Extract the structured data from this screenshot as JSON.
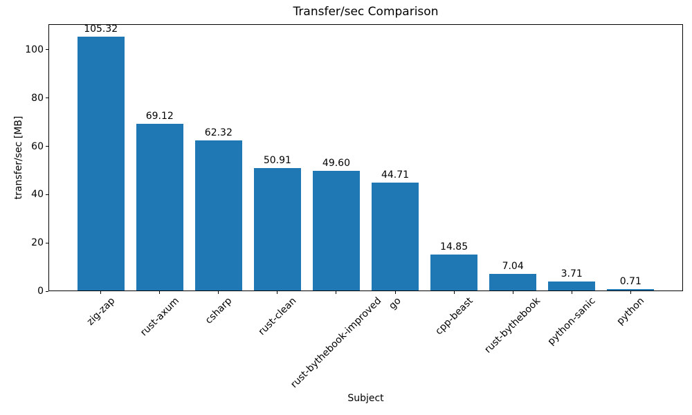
{
  "chart_data": {
    "type": "bar",
    "title": "Transfer/sec Comparison",
    "xlabel": "Subject",
    "ylabel": "transfer/sec [MB]",
    "categories": [
      "zig-zap",
      "rust-axum",
      "csharp",
      "rust-clean",
      "rust-bythebook-improved",
      "go",
      "cpp-beast",
      "rust-bythebook",
      "python-sanic",
      "python"
    ],
    "values": [
      105.32,
      69.12,
      62.32,
      50.91,
      49.6,
      44.71,
      14.85,
      7.04,
      3.71,
      0.71
    ],
    "value_labels": [
      "105.32",
      "69.12",
      "62.32",
      "50.91",
      "49.60",
      "44.71",
      "14.85",
      "7.04",
      "3.71",
      "0.71"
    ],
    "yticks": [
      0,
      20,
      40,
      60,
      80,
      100
    ],
    "ylim": [
      0,
      110.6
    ],
    "bar_color": "#1f77b4",
    "axis_color": "#000000",
    "text_color": "#000000",
    "background_color": "#ffffff",
    "grid": false,
    "legend_position": "none",
    "bar_width_fraction": 0.8,
    "x_tick_rotation_deg": 45
  }
}
